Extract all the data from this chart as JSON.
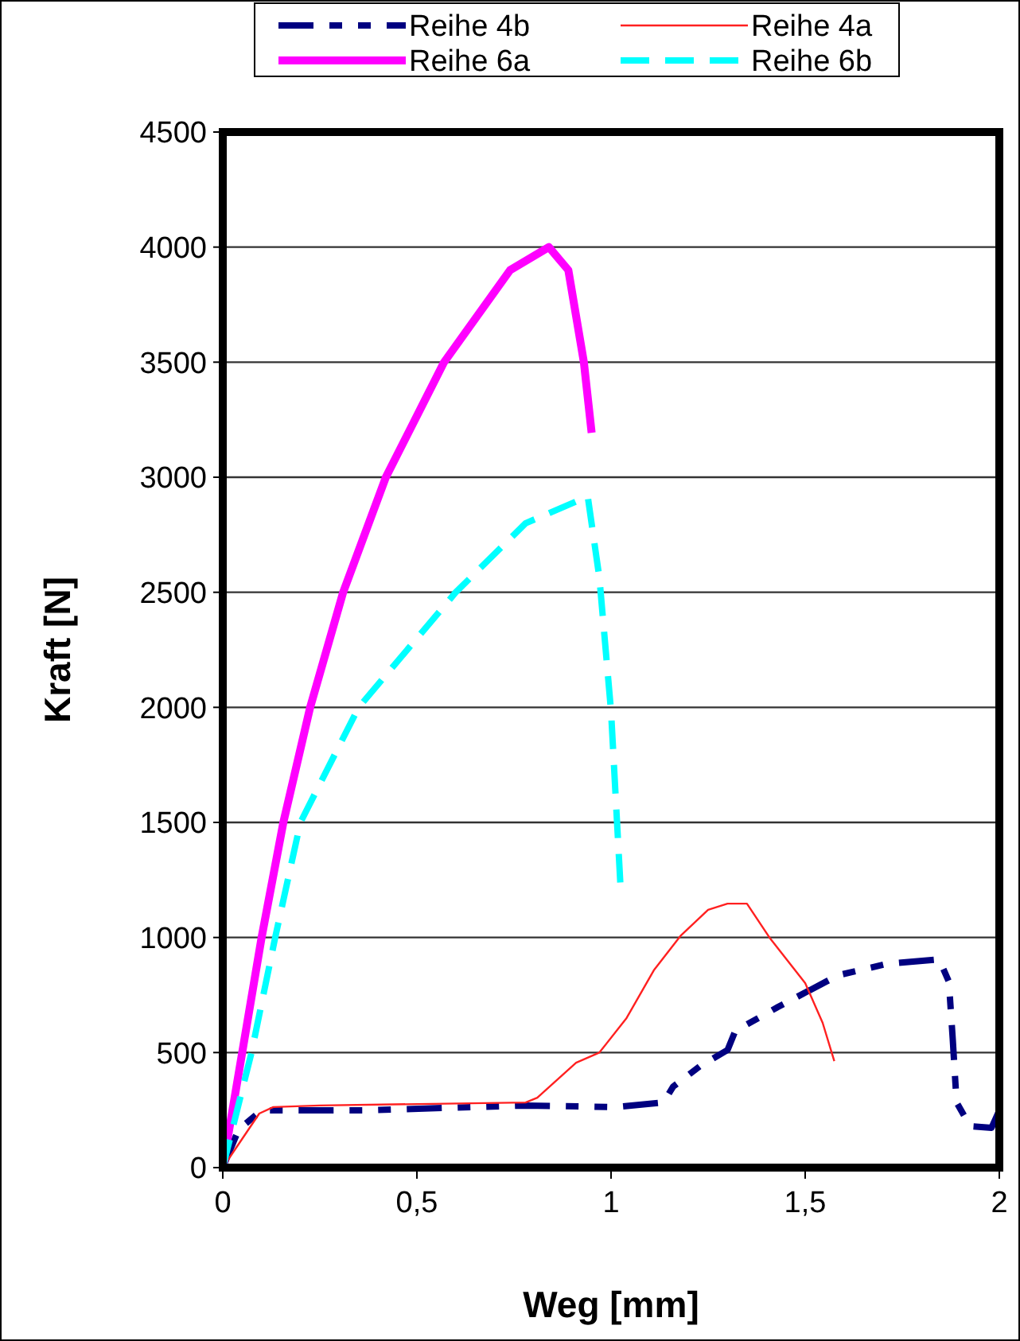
{
  "chart_data": {
    "type": "line",
    "xlabel": "Weg [mm]",
    "ylabel": "Kraft [N]",
    "xlim": [
      0,
      2
    ],
    "xticks": [
      0,
      {
        "value": 0.5,
        "label": "0,5"
      },
      1,
      {
        "value": 1.5,
        "label": "1,5"
      },
      2
    ],
    "ylim": [
      0,
      4500
    ],
    "yticks": [
      0,
      500,
      1000,
      1500,
      2000,
      2500,
      3000,
      3500,
      4000,
      4500
    ],
    "grid": "y",
    "legend": "top",
    "marker": "none",
    "series": [
      {
        "name": "Reihe 4b",
        "color": "#000080",
        "line_style": "dashed",
        "x": [
          0,
          0.041,
          0.1,
          0.37,
          0.78,
          1.01,
          1.135,
          1.16,
          1.23,
          1.3,
          1.32,
          1.43,
          1.585,
          1.71,
          1.845,
          1.87,
          1.88,
          1.89,
          1.925,
          1.98,
          2.0
        ],
        "values": [
          0,
          166,
          249,
          249,
          270,
          263,
          283,
          352,
          442,
          511,
          594,
          698,
          836,
          885,
          905,
          809,
          560,
          283,
          180,
          173,
          249
        ]
      },
      {
        "name": "Reihe 4a",
        "color": "#ff2020",
        "line_style": "solid",
        "x": [
          0,
          0.094,
          0.13,
          0.25,
          0.78,
          0.81,
          0.91,
          0.97,
          1.04,
          1.11,
          1.18,
          1.25,
          1.3,
          1.35,
          1.41,
          1.5,
          1.545,
          1.575
        ],
        "values": [
          0,
          235,
          263,
          270,
          283,
          304,
          456,
          500,
          650,
          857,
          1009,
          1120,
          1147,
          1147,
          995,
          802,
          629,
          463
        ]
      },
      {
        "name": "Reihe 6a",
        "color": "#ff00ff",
        "line_style": "solid",
        "x": [
          0,
          0.05,
          0.1,
          0.156,
          0.225,
          0.31,
          0.42,
          0.57,
          0.74,
          0.84,
          0.89,
          0.93,
          0.95
        ],
        "values": [
          0,
          500,
          1000,
          1500,
          2000,
          2500,
          3000,
          3500,
          3900,
          4000,
          3900,
          3500,
          3193
        ]
      },
      {
        "name": "Reihe 6b",
        "color": "#00ffff",
        "line_style": "dashed",
        "x": [
          0,
          0.074,
          0.135,
          0.2,
          0.35,
          0.6,
          0.78,
          0.94,
          0.97,
          1.0,
          1.025
        ],
        "values": [
          0,
          500,
          1000,
          1500,
          2000,
          2500,
          2800,
          2916,
          2563,
          1983,
          1202
        ]
      }
    ]
  }
}
